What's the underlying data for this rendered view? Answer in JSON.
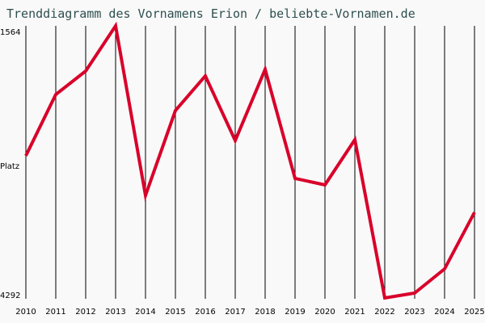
{
  "title": "Trenddiagramm des Vornamens Erion / beliebte-Vornamen.de",
  "y_axis": {
    "top_label": "1564",
    "mid_label": "Platz",
    "bottom_label": "4292"
  },
  "colors": {
    "line": "#d9002a",
    "background": "#f9f9f9",
    "title": "#2f4f4f",
    "grid": "#000000"
  },
  "chart_data": {
    "type": "line",
    "title": "Trenddiagramm des Vornamens Erion / beliebte-Vornamen.de",
    "xlabel": "",
    "ylabel": "Platz",
    "ylim": [
      4292,
      1564
    ],
    "y_inverted": true,
    "grid": "vertical",
    "legend": "none",
    "categories": [
      "2010",
      "2011",
      "2012",
      "2013",
      "2014",
      "2015",
      "2016",
      "2017",
      "2018",
      "2019",
      "2020",
      "2021",
      "2022",
      "2023",
      "2024",
      "2025"
    ],
    "series": [
      {
        "name": "Erion",
        "values": [
          2863,
          2250,
          2016,
          1564,
          3259,
          2411,
          2064,
          2710,
          1999,
          3089,
          3154,
          2702,
          4284,
          4235,
          3993,
          3428
        ]
      }
    ]
  }
}
